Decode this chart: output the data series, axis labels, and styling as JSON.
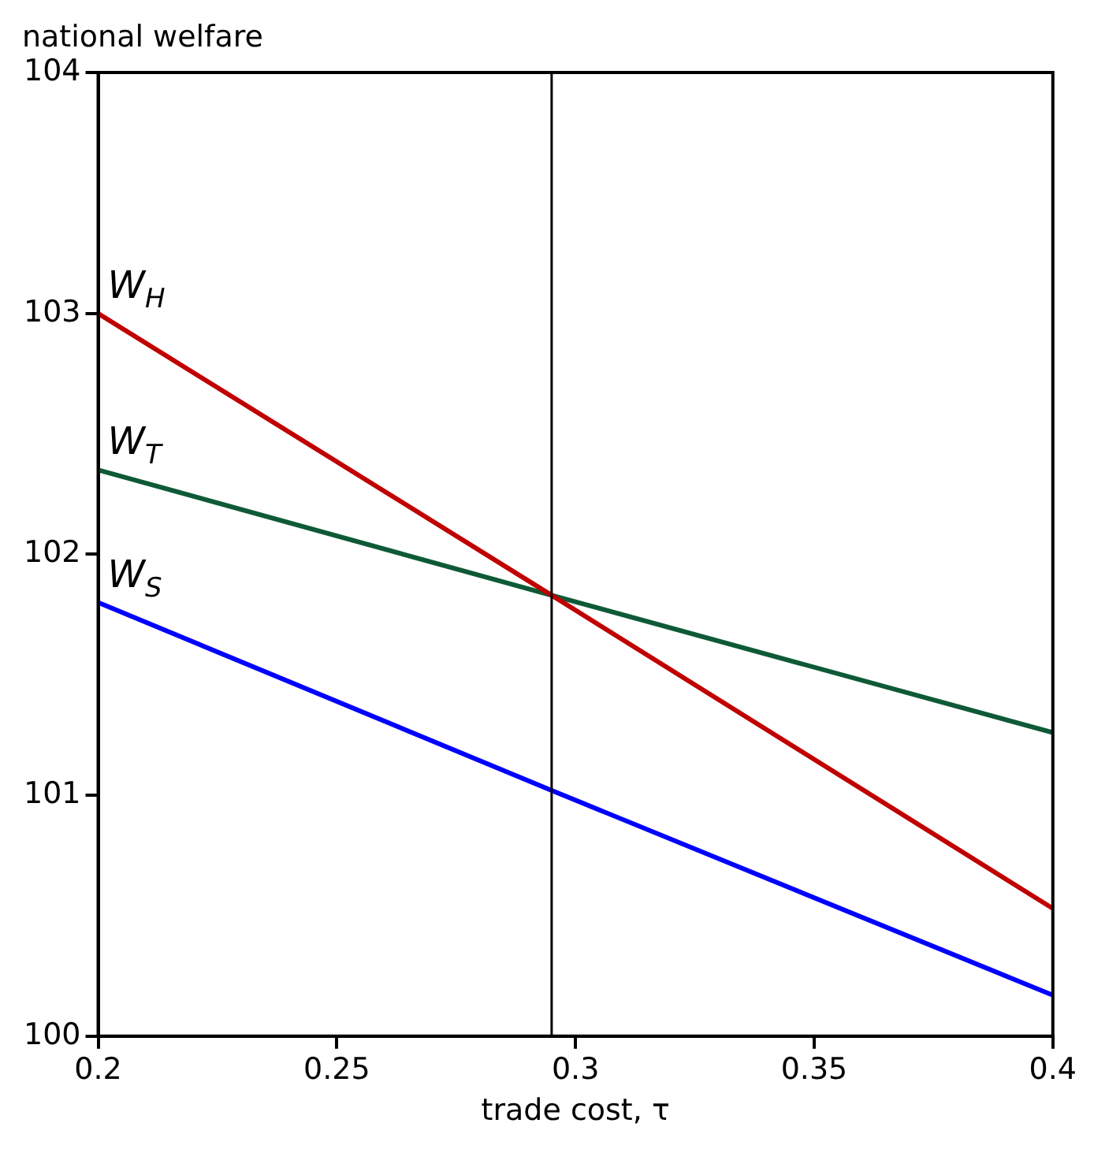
{
  "chart_data": {
    "type": "line",
    "ylabel": "national welfare",
    "xlabel": "trade cost, τ",
    "x": [
      0.2,
      0.295,
      0.4
    ],
    "series": [
      {
        "name": "W$_{H}$",
        "color": "#c00000",
        "values": [
          103.0,
          101.83,
          100.53
        ]
      },
      {
        "name": "W$_{T}$",
        "color": "#0e5a36",
        "values": [
          102.35,
          101.83,
          101.26
        ]
      },
      {
        "name": "W$_{S}$",
        "color": "#0000ff",
        "values": [
          101.8,
          101.02,
          100.17
        ]
      }
    ],
    "xlim": [
      0.2,
      0.4
    ],
    "xticks": [
      0.2,
      0.25,
      0.3,
      0.35,
      0.4
    ],
    "ylim": [
      100,
      104
    ],
    "yticks": [
      100,
      101,
      102,
      103,
      104
    ],
    "ref_lines": [
      {
        "axis": "x",
        "value": 0.295,
        "color": "#000000"
      }
    ],
    "grid": false,
    "legend": false,
    "marker": "none",
    "line_style": "solid"
  }
}
